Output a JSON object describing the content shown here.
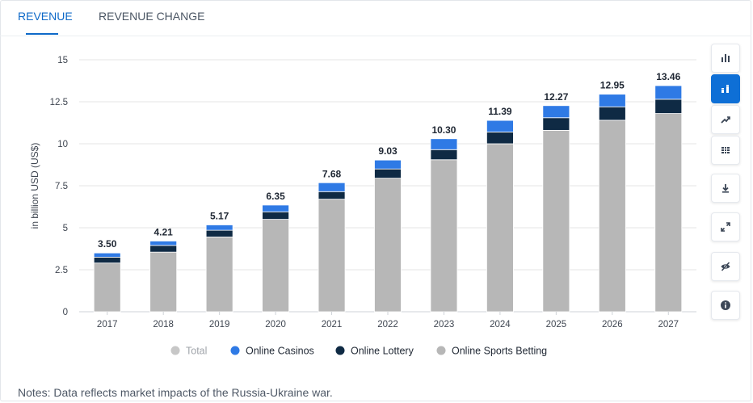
{
  "tabs": [
    {
      "label": "REVENUE",
      "active": true
    },
    {
      "label": "REVENUE CHANGE",
      "active": false
    }
  ],
  "toolbar": [
    {
      "icon": "bar-chart-icon",
      "active": false
    },
    {
      "icon": "stacked-bar-icon",
      "active": true
    },
    {
      "icon": "trend-line-icon",
      "active": false
    },
    {
      "icon": "table-icon",
      "active": false
    },
    {
      "icon": "download-icon",
      "active": false
    },
    {
      "icon": "expand-icon",
      "active": false
    },
    {
      "icon": "hide-icon",
      "active": false
    },
    {
      "icon": "info-icon",
      "active": false
    }
  ],
  "notes": "Notes: Data reflects market impacts of the Russia-Ukraine war.",
  "colors": {
    "accent": "#0e69c8",
    "online_casinos": "#2f7ae5",
    "online_lottery": "#0f2a44",
    "online_sports_betting": "#b7b7b7",
    "total_legend": "#c7c7c7"
  },
  "chart_data": {
    "type": "bar",
    "stacked": true,
    "title": "",
    "xlabel": "",
    "ylabel": "in billion USD (US$)",
    "ylim": [
      0,
      15
    ],
    "yticks": [
      "0",
      "2.5",
      "5",
      "7.5",
      "10",
      "12.5",
      "15"
    ],
    "grid": true,
    "legend_position": "bottom",
    "categories": [
      "2017",
      "2018",
      "2019",
      "2020",
      "2021",
      "2022",
      "2023",
      "2024",
      "2025",
      "2026",
      "2027"
    ],
    "totals": [
      "3.50",
      "4.21",
      "5.17",
      "6.35",
      "7.68",
      "9.03",
      "10.30",
      "11.39",
      "12.27",
      "12.95",
      "13.46"
    ],
    "legend": [
      "Total",
      "Online Casinos",
      "Online Lottery",
      "Online Sports Betting"
    ],
    "series": [
      {
        "name": "Online Sports Betting",
        "values": [
          2.9,
          3.55,
          4.45,
          5.5,
          6.7,
          7.95,
          9.05,
          10.0,
          10.8,
          11.4,
          11.8
        ]
      },
      {
        "name": "Online Lottery",
        "values": [
          0.35,
          0.4,
          0.4,
          0.45,
          0.45,
          0.55,
          0.6,
          0.7,
          0.75,
          0.8,
          0.85
        ]
      },
      {
        "name": "Online Casinos",
        "values": [
          0.25,
          0.26,
          0.32,
          0.4,
          0.53,
          0.53,
          0.65,
          0.69,
          0.72,
          0.75,
          0.81
        ]
      }
    ]
  }
}
